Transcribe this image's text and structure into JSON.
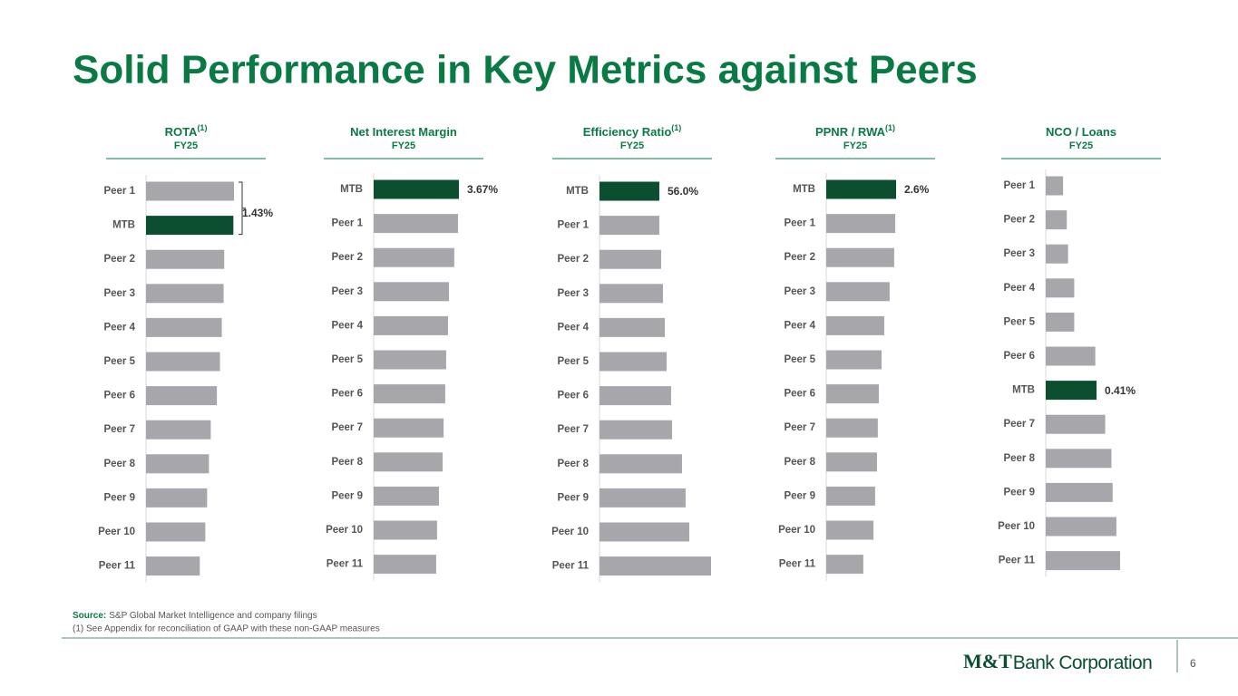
{
  "title": "Solid Performance in Key Metrics against Peers",
  "chart_data": [
    {
      "type": "bar",
      "title": "ROTA",
      "superscript": "(1)",
      "subtitle": "FY25",
      "categories": [
        "Peer 1",
        "MTB",
        "Peer 2",
        "Peer 3",
        "Peer 4",
        "Peer 5",
        "Peer 6",
        "Peer 7",
        "Peer 8",
        "Peer 9",
        "Peer 10",
        "Peer 11"
      ],
      "values": [
        1.44,
        1.43,
        1.28,
        1.27,
        1.24,
        1.21,
        1.16,
        1.06,
        1.03,
        1.0,
        0.97,
        0.88
      ],
      "value_labels": [
        null,
        "1.43%",
        null,
        null,
        null,
        null,
        null,
        null,
        null,
        null,
        null,
        null
      ],
      "value_label_style": "bracket",
      "color": "#a7a6ab",
      "highlight_color": "#0b4f30"
    },
    {
      "type": "bar",
      "title": "Net Interest Margin",
      "subtitle": "FY25",
      "categories": [
        "MTB",
        "Peer 1",
        "Peer 2",
        "Peer 3",
        "Peer 4",
        "Peer 5",
        "Peer 6",
        "Peer 7",
        "Peer 8",
        "Peer 9",
        "Peer 10",
        "Peer 11"
      ],
      "values": [
        3.67,
        3.63,
        3.47,
        3.24,
        3.2,
        3.12,
        3.08,
        3.01,
        2.97,
        2.81,
        2.73,
        2.69
      ],
      "value_labels": [
        "3.67%",
        null,
        null,
        null,
        null,
        null,
        null,
        null,
        null,
        null,
        null,
        null
      ],
      "color": "#a7a6ab",
      "highlight_color": "#0b4f30"
    },
    {
      "type": "bar",
      "title": "Efficiency Ratio",
      "superscript": "(1)",
      "subtitle": "FY25",
      "categories": [
        "MTB",
        "Peer 1",
        "Peer 2",
        "Peer 3",
        "Peer 4",
        "Peer 5",
        "Peer 6",
        "Peer 7",
        "Peer 8",
        "Peer 9",
        "Peer 10",
        "Peer 11"
      ],
      "values": [
        56.0,
        56.0,
        57.7,
        59.4,
        61.1,
        62.8,
        67.0,
        67.9,
        77.2,
        80.6,
        84.0,
        104.4
      ],
      "value_labels": [
        "56.0%",
        null,
        null,
        null,
        null,
        null,
        null,
        null,
        null,
        null,
        null,
        null
      ],
      "color": "#a7a6ab",
      "highlight_color": "#0b4f30"
    },
    {
      "type": "bar",
      "title": "PPNR / RWA",
      "superscript": "(1)",
      "subtitle": "FY25",
      "categories": [
        "MTB",
        "Peer 1",
        "Peer 2",
        "Peer 3",
        "Peer 4",
        "Peer 5",
        "Peer 6",
        "Peer 7",
        "Peer 8",
        "Peer 9",
        "Peer 10",
        "Peer 11"
      ],
      "values": [
        2.6,
        2.57,
        2.53,
        2.36,
        2.16,
        2.06,
        1.96,
        1.92,
        1.89,
        1.82,
        1.76,
        1.38
      ],
      "value_labels": [
        "2.6%",
        null,
        null,
        null,
        null,
        null,
        null,
        null,
        null,
        null,
        null,
        null
      ],
      "color": "#a7a6ab",
      "highlight_color": "#0b4f30"
    },
    {
      "type": "bar",
      "title": "NCO / Loans",
      "subtitle": "FY25",
      "categories": [
        "Peer 1",
        "Peer 2",
        "Peer 3",
        "Peer 4",
        "Peer 5",
        "Peer 6",
        "MTB",
        "Peer 7",
        "Peer 8",
        "Peer 9",
        "Peer 10",
        "Peer 11"
      ],
      "values": [
        0.14,
        0.17,
        0.18,
        0.23,
        0.23,
        0.4,
        0.41,
        0.48,
        0.53,
        0.54,
        0.57,
        0.6
      ],
      "value_labels": [
        null,
        null,
        null,
        null,
        null,
        null,
        "0.41%",
        null,
        null,
        null,
        null,
        null
      ],
      "color": "#a7a6ab",
      "highlight_color": "#0b4f30"
    }
  ],
  "footer": {
    "source_label": "Source:",
    "source": "S&P Global Market Intelligence and company filings",
    "note": "(1) See Appendix for reconciliation of GAAP with these non-GAAP measures",
    "logo_mark": "M&T",
    "logo_text": "Bank Corporation",
    "page": "6"
  }
}
